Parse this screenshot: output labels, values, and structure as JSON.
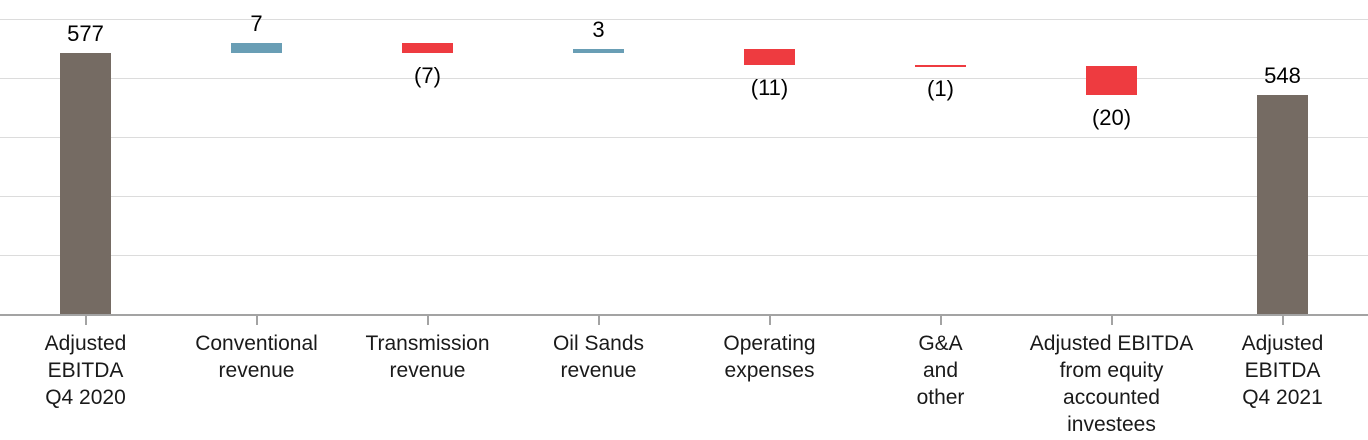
{
  "chart_data": {
    "type": "bar",
    "subtype": "waterfall",
    "title": "",
    "xlabel": "",
    "ylabel": "",
    "legend": "none",
    "grid": "horizontal",
    "ylim": [
      394,
      601
    ],
    "gridline_count": 5,
    "start_value": 577,
    "end_value": 548,
    "categories": [
      "Adjusted EBITDA Q4 2020",
      "Conventional revenue",
      "Transmission revenue",
      "Oil Sands revenue",
      "Operating expenses",
      "G&A and other",
      "Adjusted EBITDA from equity accounted investees",
      "Adjusted EBITDA Q4 2021"
    ],
    "category_lines": [
      [
        "Adjusted",
        "EBITDA",
        "Q4 2020"
      ],
      [
        "Conventional",
        "revenue"
      ],
      [
        "Transmission",
        "revenue"
      ],
      [
        "Oil Sands",
        "revenue"
      ],
      [
        "Operating",
        "expenses"
      ],
      [
        "G&A",
        "and",
        "other"
      ],
      [
        "Adjusted EBITDA",
        "from equity",
        "accounted",
        "investees"
      ],
      [
        "Adjusted",
        "EBITDA",
        "Q4 2021"
      ]
    ],
    "values": [
      577,
      7,
      -7,
      3,
      -11,
      -1,
      -20,
      548
    ],
    "bar_kinds": [
      "total",
      "increase",
      "decrease",
      "increase",
      "decrease",
      "decrease",
      "decrease",
      "total"
    ],
    "data_labels": [
      "577",
      "7",
      "(7)",
      "3",
      "(11)",
      "(1)",
      "(20)",
      "548"
    ],
    "colors": {
      "total": "#756B63",
      "increase": "#699EB5",
      "decrease": "#EE3B40",
      "gridline": "#DCDCDC",
      "axis_line": "#A3A3A3",
      "label_text": "#000000",
      "category_text": "#1A1A1A"
    }
  }
}
